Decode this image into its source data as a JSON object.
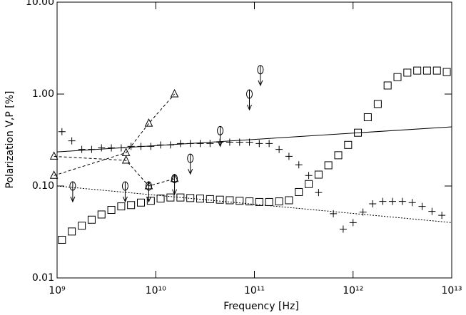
{
  "chart_data": {
    "type": "scatter",
    "xlabel": "Frequency [Hz]",
    "ylabel": "Polarization V,P [%]",
    "xlog": true,
    "ylog": true,
    "xlim": [
      1000000000.0,
      10000000000000.0
    ],
    "xticks": [
      {
        "value": 1000000000.0,
        "label": "10⁹"
      },
      {
        "value": 10000000000.0,
        "label": "10¹⁰"
      },
      {
        "value": 100000000000.0,
        "label": "10¹¹"
      },
      {
        "value": 1000000000000.0,
        "label": "10¹²"
      },
      {
        "value": 10000000000000.0,
        "label": "10¹³"
      }
    ],
    "ylim": [
      0.01,
      10
    ],
    "yticks": [
      {
        "value": 0.01,
        "label": "0.01"
      },
      {
        "value": 0.1,
        "label": "0.10"
      },
      {
        "value": 1,
        "label": "1.00"
      },
      {
        "value": 10,
        "label": "10.00"
      }
    ],
    "series": [
      {
        "color": "#000000",
        "marker": "plus",
        "line": "none",
        "x": [
          1120000000.0,
          1410000000.0,
          1780000000.0,
          2240000000.0,
          2820000000.0,
          3550000000.0,
          4470000000.0,
          5620000000.0,
          7080000000.0,
          8910000000.0,
          11200000000.0,
          14100000000.0,
          17800000000.0,
          22400000000.0,
          28200000000.0,
          35500000000.0,
          44700000000.0,
          56200000000.0,
          70800000000.0,
          89100000000.0,
          112000000000.0,
          141000000000.0,
          178000000000.0,
          224000000000.0,
          282000000000.0,
          355000000000.0,
          447000000000.0,
          631000000000.0,
          794000000000.0,
          1000000000000.0,
          1260000000000.0,
          1580000000000.0,
          2000000000000.0,
          2510000000000.0,
          3160000000000.0,
          3980000000000.0,
          5010000000000.0,
          6310000000000.0,
          7940000000000.0
        ],
        "values": [
          0.39,
          0.31,
          0.25,
          0.25,
          0.26,
          0.26,
          0.26,
          0.27,
          0.27,
          0.27,
          0.28,
          0.28,
          0.29,
          0.29,
          0.29,
          0.29,
          0.3,
          0.3,
          0.3,
          0.3,
          0.29,
          0.29,
          0.25,
          0.21,
          0.17,
          0.13,
          0.085,
          0.05,
          0.034,
          0.04,
          0.052,
          0.064,
          0.068,
          0.068,
          0.068,
          0.066,
          0.06,
          0.053,
          0.048
        ]
      },
      {
        "color": "#000000",
        "marker": "square",
        "line": "none",
        "x": [
          1120000000.0,
          1410000000.0,
          1780000000.0,
          2240000000.0,
          2820000000.0,
          3550000000.0,
          4470000000.0,
          5620000000.0,
          7080000000.0,
          8910000000.0,
          11200000000.0,
          14100000000.0,
          17800000000.0,
          22400000000.0,
          28200000000.0,
          35500000000.0,
          44700000000.0,
          56200000000.0,
          70800000000.0,
          89100000000.0,
          112000000000.0,
          141000000000.0,
          178000000000.0,
          224000000000.0,
          282000000000.0,
          355000000000.0,
          447000000000.0,
          562000000000.0,
          708000000000.0,
          891000000000.0,
          1120000000000.0,
          1410000000000.0,
          1780000000000.0,
          2240000000000.0,
          2820000000000.0,
          3550000000000.0,
          4470000000000.0,
          5620000000000.0,
          7080000000000.0,
          8910000000000.0
        ],
        "values": [
          0.026,
          0.032,
          0.037,
          0.043,
          0.049,
          0.055,
          0.06,
          0.062,
          0.066,
          0.069,
          0.073,
          0.075,
          0.075,
          0.074,
          0.073,
          0.072,
          0.071,
          0.07,
          0.069,
          0.068,
          0.067,
          0.067,
          0.068,
          0.07,
          0.086,
          0.105,
          0.133,
          0.168,
          0.216,
          0.28,
          0.38,
          0.56,
          0.78,
          1.24,
          1.53,
          1.71,
          1.8,
          1.8,
          1.8,
          1.74
        ]
      },
      {
        "color": "#000000",
        "marker": "triangle",
        "line": "dashed",
        "x": [
          930000000.0,
          5000000000.0,
          8500000000.0,
          15500000000.0
        ],
        "values": [
          0.13,
          0.23,
          0.48,
          1.0
        ]
      },
      {
        "color": "#000000",
        "marker": "triangle",
        "line": "dashed",
        "x": [
          930000000.0,
          5000000000.0,
          8500000000.0,
          15500000000.0
        ],
        "values": [
          0.21,
          0.19,
          0.1,
          0.12
        ]
      },
      {
        "color": "#000000",
        "marker": "circle",
        "line": "none",
        "upper_limit": true,
        "x": [
          1440000000.0,
          4900000000.0,
          8500000000.0,
          15500000000.0,
          22400000000.0,
          45000000000.0,
          89000000000.0,
          115000000000.0
        ],
        "values": [
          0.1,
          0.1,
          0.1,
          0.12,
          0.2,
          0.4,
          1.0,
          1.84
        ]
      },
      {
        "color": "#000000",
        "marker": "none",
        "line": "solid",
        "x": [
          1000000000.0,
          10000000000000.0
        ],
        "values": [
          0.235,
          0.44
        ]
      },
      {
        "color": "#000000",
        "marker": "none",
        "line": "dotted",
        "x": [
          1000000000.0,
          10000000000000.0
        ],
        "values": [
          0.1,
          0.04
        ]
      }
    ]
  }
}
